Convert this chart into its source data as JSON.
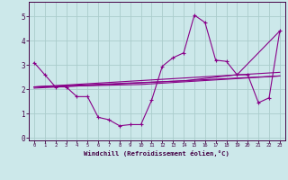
{
  "background_color": "#cce8ea",
  "grid_color": "#aacccc",
  "line_color": "#880088",
  "xlabel": "Windchill (Refroidissement éolien,°C)",
  "xlim": [
    -0.5,
    23.5
  ],
  "ylim": [
    -0.1,
    5.6
  ],
  "yticks": [
    0,
    1,
    2,
    3,
    4,
    5
  ],
  "xticks": [
    0,
    1,
    2,
    3,
    4,
    5,
    6,
    7,
    8,
    9,
    10,
    11,
    12,
    13,
    14,
    15,
    16,
    17,
    18,
    19,
    20,
    21,
    22,
    23
  ],
  "series1": {
    "x": [
      0,
      1,
      2,
      3,
      4,
      5,
      6,
      7,
      8,
      9,
      10,
      11,
      12,
      13,
      14,
      15,
      16,
      17,
      18,
      19,
      20,
      21,
      22,
      23
    ],
    "y": [
      3.1,
      2.6,
      2.1,
      2.1,
      1.7,
      1.7,
      0.85,
      0.75,
      0.5,
      0.55,
      0.55,
      1.55,
      2.95,
      3.3,
      3.5,
      5.05,
      4.75,
      3.2,
      3.15,
      2.6,
      2.6,
      1.45,
      1.65,
      4.4
    ]
  },
  "trend_lines": [
    {
      "x": [
        0,
        23
      ],
      "y": [
        2.05,
        2.55
      ]
    },
    {
      "x": [
        0,
        10,
        23
      ],
      "y": [
        2.1,
        2.2,
        2.55
      ]
    },
    {
      "x": [
        0,
        23
      ],
      "y": [
        2.1,
        2.7
      ]
    },
    {
      "x": [
        0,
        14,
        19,
        23
      ],
      "y": [
        2.1,
        2.35,
        2.6,
        4.4
      ]
    }
  ]
}
